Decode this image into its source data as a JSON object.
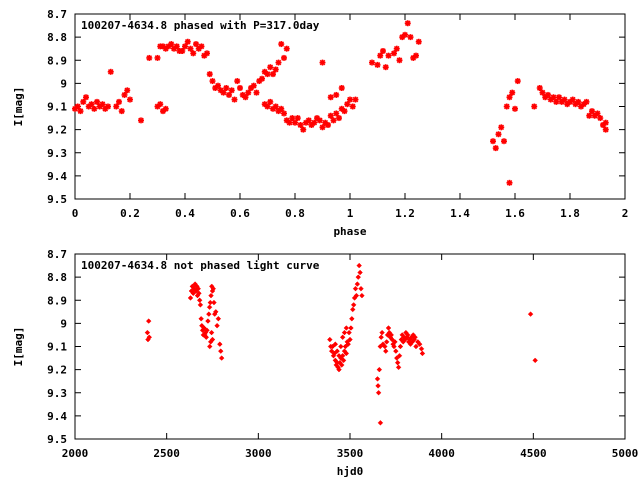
{
  "chart_data": [
    {
      "type": "scatter",
      "title": "100207-4634.8 phased with P=317.0day",
      "xlabel": "phase",
      "ylabel": "I[mag]",
      "xlim": [
        0,
        2
      ],
      "ylim": [
        8.7,
        9.5
      ],
      "y_inverted": true,
      "grid": false,
      "legend": "none",
      "marker_color": "#ff0000",
      "x_ticks": [
        0,
        0.2,
        0.4,
        0.6,
        0.8,
        1,
        1.2,
        1.4,
        1.6,
        1.8,
        2
      ],
      "x_tick_labels": [
        "0",
        "0.2",
        "0.4",
        "0.6",
        "0.8",
        "1",
        "1.2",
        "1.4",
        "1.6",
        "1.8",
        "2"
      ],
      "y_ticks": [
        8.7,
        8.8,
        8.9,
        9,
        9.1,
        9.2,
        9.3,
        9.4,
        9.5
      ],
      "y_tick_labels": [
        "8.7",
        "8.8",
        "8.9",
        "9",
        "9.1",
        "9.2",
        "9.3",
        "9.4",
        "9.5"
      ],
      "points": [
        [
          0.0,
          9.11
        ],
        [
          0.01,
          9.1
        ],
        [
          0.02,
          9.12
        ],
        [
          0.03,
          9.08
        ],
        [
          0.04,
          9.06
        ],
        [
          0.05,
          9.1
        ],
        [
          0.06,
          9.09
        ],
        [
          0.07,
          9.11
        ],
        [
          0.08,
          9.08
        ],
        [
          0.09,
          9.1
        ],
        [
          0.1,
          9.09
        ],
        [
          0.11,
          9.11
        ],
        [
          0.12,
          9.1
        ],
        [
          0.13,
          8.95
        ],
        [
          0.15,
          9.1
        ],
        [
          0.16,
          9.08
        ],
        [
          0.17,
          9.12
        ],
        [
          0.18,
          9.05
        ],
        [
          0.19,
          9.03
        ],
        [
          0.2,
          9.07
        ],
        [
          0.24,
          9.16
        ],
        [
          0.27,
          8.89
        ],
        [
          0.3,
          9.1
        ],
        [
          0.31,
          9.09
        ],
        [
          0.32,
          9.12
        ],
        [
          0.33,
          9.11
        ],
        [
          0.3,
          8.89
        ],
        [
          0.31,
          8.84
        ],
        [
          0.32,
          8.84
        ],
        [
          0.33,
          8.85
        ],
        [
          0.34,
          8.84
        ],
        [
          0.35,
          8.83
        ],
        [
          0.36,
          8.85
        ],
        [
          0.37,
          8.84
        ],
        [
          0.38,
          8.86
        ],
        [
          0.39,
          8.86
        ],
        [
          0.4,
          8.84
        ],
        [
          0.41,
          8.82
        ],
        [
          0.42,
          8.85
        ],
        [
          0.43,
          8.87
        ],
        [
          0.44,
          8.83
        ],
        [
          0.45,
          8.85
        ],
        [
          0.46,
          8.84
        ],
        [
          0.47,
          8.88
        ],
        [
          0.48,
          8.87
        ],
        [
          0.49,
          8.96
        ],
        [
          0.5,
          8.99
        ],
        [
          0.51,
          9.02
        ],
        [
          0.52,
          9.01
        ],
        [
          0.53,
          9.03
        ],
        [
          0.54,
          9.04
        ],
        [
          0.55,
          9.02
        ],
        [
          0.56,
          9.05
        ],
        [
          0.57,
          9.03
        ],
        [
          0.58,
          9.07
        ],
        [
          0.59,
          8.99
        ],
        [
          0.6,
          9.02
        ],
        [
          0.61,
          9.05
        ],
        [
          0.62,
          9.06
        ],
        [
          0.63,
          9.04
        ],
        [
          0.64,
          9.02
        ],
        [
          0.65,
          9.01
        ],
        [
          0.66,
          9.04
        ],
        [
          0.67,
          8.99
        ],
        [
          0.68,
          8.98
        ],
        [
          0.69,
          8.95
        ],
        [
          0.7,
          8.96
        ],
        [
          0.71,
          8.93
        ],
        [
          0.72,
          8.96
        ],
        [
          0.73,
          8.94
        ],
        [
          0.74,
          8.91
        ],
        [
          0.75,
          8.83
        ],
        [
          0.76,
          8.89
        ],
        [
          0.77,
          8.85
        ],
        [
          0.69,
          9.09
        ],
        [
          0.7,
          9.1
        ],
        [
          0.71,
          9.08
        ],
        [
          0.72,
          9.11
        ],
        [
          0.73,
          9.1
        ],
        [
          0.74,
          9.12
        ],
        [
          0.75,
          9.11
        ],
        [
          0.76,
          9.13
        ],
        [
          0.77,
          9.16
        ],
        [
          0.78,
          9.17
        ],
        [
          0.79,
          9.15
        ],
        [
          0.8,
          9.17
        ],
        [
          0.81,
          9.15
        ],
        [
          0.82,
          9.18
        ],
        [
          0.83,
          9.2
        ],
        [
          0.84,
          9.17
        ],
        [
          0.85,
          9.16
        ],
        [
          0.86,
          9.18
        ],
        [
          0.87,
          9.17
        ],
        [
          0.88,
          9.15
        ],
        [
          0.89,
          9.16
        ],
        [
          0.9,
          9.19
        ],
        [
          0.91,
          9.17
        ],
        [
          0.92,
          9.18
        ],
        [
          0.93,
          9.14
        ],
        [
          0.94,
          9.16
        ],
        [
          0.95,
          9.13
        ],
        [
          0.96,
          9.15
        ],
        [
          0.97,
          9.11
        ],
        [
          0.98,
          9.12
        ],
        [
          0.99,
          9.09
        ],
        [
          1.0,
          9.07
        ],
        [
          1.01,
          9.1
        ],
        [
          1.02,
          9.07
        ],
        [
          0.9,
          8.91
        ],
        [
          0.93,
          9.06
        ],
        [
          0.95,
          9.05
        ],
        [
          0.97,
          9.02
        ],
        [
          1.08,
          8.91
        ],
        [
          1.1,
          8.92
        ],
        [
          1.11,
          8.88
        ],
        [
          1.12,
          8.86
        ],
        [
          1.13,
          8.93
        ],
        [
          1.14,
          8.88
        ],
        [
          1.16,
          8.87
        ],
        [
          1.17,
          8.85
        ],
        [
          1.18,
          8.9
        ],
        [
          1.19,
          8.8
        ],
        [
          1.2,
          8.79
        ],
        [
          1.21,
          8.74
        ],
        [
          1.22,
          8.8
        ],
        [
          1.23,
          8.89
        ],
        [
          1.24,
          8.88
        ],
        [
          1.25,
          8.82
        ],
        [
          1.52,
          9.25
        ],
        [
          1.53,
          9.28
        ],
        [
          1.54,
          9.22
        ],
        [
          1.55,
          9.19
        ],
        [
          1.56,
          9.25
        ],
        [
          1.57,
          9.1
        ],
        [
          1.58,
          9.06
        ],
        [
          1.59,
          9.04
        ],
        [
          1.58,
          9.43
        ],
        [
          1.6,
          9.11
        ],
        [
          1.61,
          8.99
        ],
        [
          1.67,
          9.1
        ],
        [
          1.69,
          9.02
        ],
        [
          1.7,
          9.04
        ],
        [
          1.71,
          9.06
        ],
        [
          1.72,
          9.05
        ],
        [
          1.73,
          9.07
        ],
        [
          1.74,
          9.06
        ],
        [
          1.75,
          9.08
        ],
        [
          1.76,
          9.06
        ],
        [
          1.77,
          9.08
        ],
        [
          1.78,
          9.07
        ],
        [
          1.79,
          9.09
        ],
        [
          1.8,
          9.08
        ],
        [
          1.81,
          9.07
        ],
        [
          1.82,
          9.09
        ],
        [
          1.83,
          9.08
        ],
        [
          1.84,
          9.1
        ],
        [
          1.85,
          9.09
        ],
        [
          1.86,
          9.08
        ],
        [
          1.87,
          9.14
        ],
        [
          1.88,
          9.12
        ],
        [
          1.89,
          9.14
        ],
        [
          1.9,
          9.13
        ],
        [
          1.91,
          9.15
        ],
        [
          1.92,
          9.18
        ],
        [
          1.93,
          9.2
        ],
        [
          1.93,
          9.17
        ]
      ]
    },
    {
      "type": "scatter",
      "title": "100207-4634.8 not phased light curve",
      "xlabel": "hjd0",
      "ylabel": "I[mag]",
      "xlim": [
        2000,
        5000
      ],
      "ylim": [
        8.7,
        9.5
      ],
      "y_inverted": true,
      "grid": false,
      "legend": "none",
      "marker_color": "#ff0000",
      "x_ticks": [
        2000,
        2500,
        3000,
        3500,
        4000,
        4500,
        5000
      ],
      "x_tick_labels": [
        "2000",
        "2500",
        "3000",
        "3500",
        "4000",
        "4500",
        "5000"
      ],
      "y_ticks": [
        8.7,
        8.8,
        8.9,
        9,
        9.1,
        9.2,
        9.3,
        9.4,
        9.5
      ],
      "y_tick_labels": [
        "8.7",
        "8.8",
        "8.9",
        "9",
        "9.1",
        "9.2",
        "9.3",
        "9.4",
        "9.5"
      ],
      "points": [
        [
          2395,
          9.04
        ],
        [
          2398,
          9.07
        ],
        [
          2402,
          8.99
        ],
        [
          2405,
          9.06
        ],
        [
          2630,
          8.89
        ],
        [
          2635,
          8.86
        ],
        [
          2640,
          8.84
        ],
        [
          2645,
          8.87
        ],
        [
          2650,
          8.85
        ],
        [
          2655,
          8.83
        ],
        [
          2660,
          8.86
        ],
        [
          2665,
          8.84
        ],
        [
          2668,
          8.88
        ],
        [
          2672,
          8.85
        ],
        [
          2676,
          8.87
        ],
        [
          2680,
          8.9
        ],
        [
          2684,
          8.92
        ],
        [
          2688,
          8.98
        ],
        [
          2692,
          9.01
        ],
        [
          2696,
          9.03
        ],
        [
          2700,
          9.05
        ],
        [
          2704,
          9.02
        ],
        [
          2708,
          9.05
        ],
        [
          2712,
          9.04
        ],
        [
          2716,
          9.06
        ],
        [
          2720,
          9.03
        ],
        [
          2725,
          8.99
        ],
        [
          2730,
          8.96
        ],
        [
          2734,
          8.93
        ],
        [
          2738,
          8.91
        ],
        [
          2742,
          8.88
        ],
        [
          2746,
          8.84
        ],
        [
          2750,
          8.86
        ],
        [
          2754,
          8.85
        ],
        [
          2758,
          8.91
        ],
        [
          2762,
          8.96
        ],
        [
          2768,
          8.95
        ],
        [
          2775,
          9.01
        ],
        [
          2782,
          8.98
        ],
        [
          2790,
          9.09
        ],
        [
          2795,
          9.12
        ],
        [
          2800,
          9.15
        ],
        [
          2735,
          9.1
        ],
        [
          2740,
          9.08
        ],
        [
          2745,
          9.04
        ],
        [
          2750,
          9.07
        ],
        [
          3390,
          9.07
        ],
        [
          3395,
          9.1
        ],
        [
          3400,
          9.12
        ],
        [
          3405,
          9.1
        ],
        [
          3410,
          9.14
        ],
        [
          3415,
          9.13
        ],
        [
          3420,
          9.16
        ],
        [
          3425,
          9.18
        ],
        [
          3430,
          9.17
        ],
        [
          3435,
          9.19
        ],
        [
          3440,
          9.2
        ],
        [
          3445,
          9.17
        ],
        [
          3450,
          9.15
        ],
        [
          3455,
          9.18
        ],
        [
          3460,
          9.14
        ],
        [
          3465,
          9.16
        ],
        [
          3470,
          9.12
        ],
        [
          3475,
          9.1
        ],
        [
          3480,
          9.13
        ],
        [
          3485,
          9.08
        ],
        [
          3490,
          9.09
        ],
        [
          3495,
          9.04
        ],
        [
          3500,
          9.07
        ],
        [
          3505,
          9.02
        ],
        [
          3510,
          8.98
        ],
        [
          3515,
          8.94
        ],
        [
          3520,
          8.92
        ],
        [
          3525,
          8.89
        ],
        [
          3530,
          8.85
        ],
        [
          3535,
          8.88
        ],
        [
          3540,
          8.83
        ],
        [
          3545,
          8.8
        ],
        [
          3550,
          8.75
        ],
        [
          3555,
          8.78
        ],
        [
          3560,
          8.85
        ],
        [
          3565,
          8.88
        ],
        [
          3420,
          9.09
        ],
        [
          3430,
          9.12
        ],
        [
          3440,
          9.14
        ],
        [
          3450,
          9.1
        ],
        [
          3460,
          9.06
        ],
        [
          3470,
          9.04
        ],
        [
          3480,
          9.02
        ],
        [
          3650,
          9.24
        ],
        [
          3653,
          9.27
        ],
        [
          3656,
          9.3
        ],
        [
          3660,
          9.2
        ],
        [
          3665,
          9.1
        ],
        [
          3670,
          9.06
        ],
        [
          3675,
          9.04
        ],
        [
          3680,
          9.09
        ],
        [
          3666,
          9.43
        ],
        [
          3690,
          9.1
        ],
        [
          3695,
          9.12
        ],
        [
          3700,
          9.08
        ],
        [
          3705,
          9.05
        ],
        [
          3710,
          9.02
        ],
        [
          3715,
          9.04
        ],
        [
          3720,
          9.06
        ],
        [
          3725,
          9.05
        ],
        [
          3730,
          9.07
        ],
        [
          3735,
          9.09
        ],
        [
          3740,
          9.1
        ],
        [
          3745,
          9.08
        ],
        [
          3750,
          9.12
        ],
        [
          3755,
          9.15
        ],
        [
          3760,
          9.17
        ],
        [
          3765,
          9.19
        ],
        [
          3770,
          9.14
        ],
        [
          3775,
          9.1
        ],
        [
          3780,
          9.07
        ],
        [
          3785,
          9.05
        ],
        [
          3790,
          9.08
        ],
        [
          3795,
          9.06
        ],
        [
          3800,
          9.07
        ],
        [
          3805,
          9.04
        ],
        [
          3810,
          9.06
        ],
        [
          3815,
          9.05
        ],
        [
          3820,
          9.08
        ],
        [
          3825,
          9.07
        ],
        [
          3830,
          9.09
        ],
        [
          3835,
          9.06
        ],
        [
          3840,
          9.08
        ],
        [
          3845,
          9.05
        ],
        [
          3850,
          9.07
        ],
        [
          3855,
          9.06
        ],
        [
          3860,
          9.1
        ],
        [
          3870,
          9.08
        ],
        [
          3880,
          9.09
        ],
        [
          3890,
          9.11
        ],
        [
          3895,
          9.13
        ],
        [
          4485,
          8.96
        ],
        [
          4510,
          9.16
        ]
      ]
    }
  ]
}
